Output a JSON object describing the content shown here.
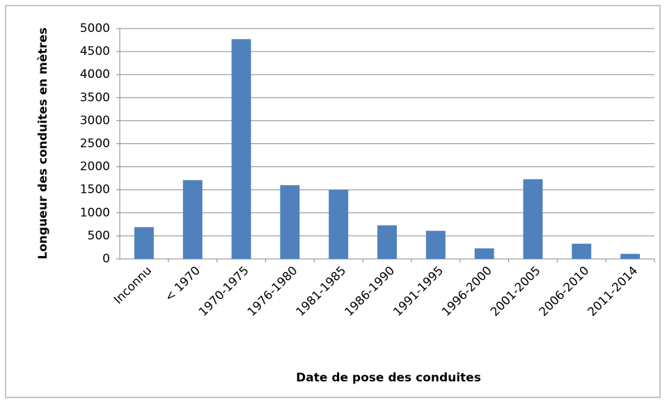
{
  "chart_data": {
    "type": "bar",
    "x_label": "Date de pose des conduites",
    "y_label": "Longueur des conduites en mètres",
    "categories": [
      "Inconnu",
      "< 1970",
      "1970-1975",
      "1976-1980",
      "1981-1985",
      "1986-1990",
      "1991-1995",
      "1996-2000",
      "2001-2005",
      "2006-2010",
      "2011-2014"
    ],
    "values": [
      690,
      1710,
      4770,
      1600,
      1500,
      730,
      610,
      230,
      1730,
      330,
      110
    ],
    "color": "#4f81bd",
    "ylim": [
      0,
      5000
    ],
    "yticks": [
      0,
      500,
      1000,
      1500,
      2000,
      2500,
      3000,
      3500,
      4000,
      4500,
      5000
    ],
    "grid": true
  }
}
